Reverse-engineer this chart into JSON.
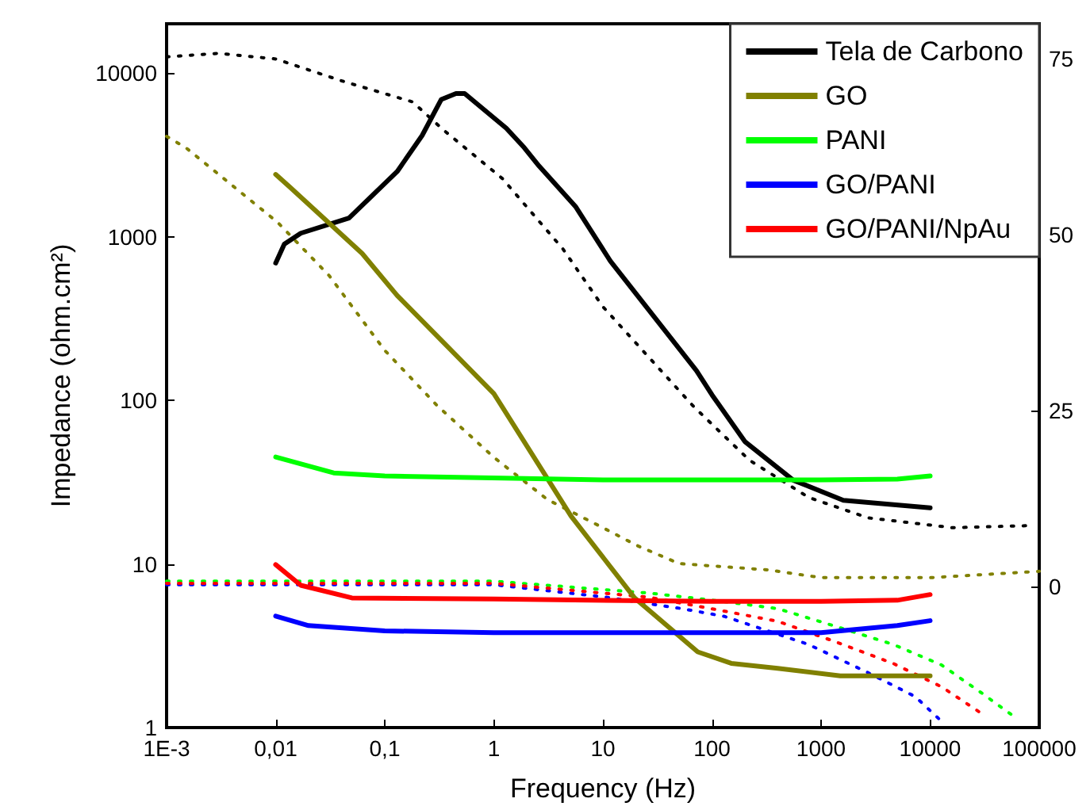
{
  "chart_data": {
    "type": "line",
    "xlabel": "Frequency (Hz)",
    "ylabel": "Impedance (ohm.cm²)",
    "log": "xy",
    "xlim": [
      0.001,
      100000
    ],
    "xticks": [
      {
        "value": 0.001,
        "label": "1E-3"
      },
      {
        "value": 0.01,
        "label": "0,01"
      },
      {
        "value": 0.1,
        "label": "0,1"
      },
      1,
      10,
      100,
      1000,
      10000,
      100000
    ],
    "ylim": [
      1,
      20000
    ],
    "yticks": [
      1,
      10,
      100,
      1000,
      10000
    ],
    "y2lim": [
      -20,
      80
    ],
    "y2ticks": [
      0,
      25,
      50,
      75
    ],
    "grid": false,
    "legend": "top right",
    "marker": "none",
    "line_style": "solid",
    "series": [
      {
        "name": "Tela de Carbono",
        "color": "#000000",
        "x": [
          0.01,
          0.012,
          0.017,
          0.047,
          0.13,
          0.22,
          0.33,
          0.45,
          0.54,
          1.3,
          1.9,
          2.6,
          5.6,
          11.7,
          72,
          100,
          200,
          556,
          1600,
          10000
        ],
        "values": [
          690,
          900,
          1050,
          1300,
          2500,
          4150,
          6900,
          7500,
          7500,
          4600,
          3500,
          2700,
          1530,
          710,
          152,
          108,
          56,
          32.5,
          24.5,
          22
        ]
      },
      {
        "name": "GO",
        "color": "#808000",
        "x": [
          0.01,
          0.0136,
          0.062,
          0.13,
          1,
          5.1,
          19.5,
          74,
          150,
          400,
          1500,
          10000
        ],
        "values": [
          2400,
          2000,
          790,
          437,
          110,
          19.6,
          6.2,
          2.9,
          2.47,
          2.3,
          2.07,
          2.07
        ]
      },
      {
        "name": "PANI",
        "color": "#00ff00",
        "x": [
          0.01,
          0.034,
          0.1,
          10,
          1000,
          5000,
          10000
        ],
        "values": [
          45,
          36,
          34.5,
          32.6,
          32.6,
          33,
          34.5
        ]
      },
      {
        "name": "GO/PANI",
        "color": "#0000ff",
        "x": [
          0.01,
          0.02,
          0.1,
          1,
          1000,
          5000,
          10000
        ],
        "values": [
          4.8,
          4.2,
          3.9,
          3.8,
          3.8,
          4.2,
          4.5
        ]
      },
      {
        "name": "GO/PANI/NpAu",
        "color": "#ff0000",
        "x": [
          0.01,
          0.017,
          0.05,
          1,
          100,
          1000,
          5000,
          10000
        ],
        "values": [
          9.9,
          7.4,
          6.2,
          6.1,
          5.9,
          5.9,
          6,
          6.5
        ]
      },
      {
        "color": "#000000",
        "axis": "y2",
        "line_style": "dotted",
        "x": [
          0.001,
          0.003,
          0.01,
          0.042,
          0.18,
          0.34,
          1.2,
          4.3,
          10,
          68,
          220,
          770,
          2700,
          16000,
          83000
        ],
        "values": [
          75.3,
          75.8,
          75,
          71.8,
          68.9,
          65,
          58,
          48,
          39.8,
          25.6,
          18,
          12.7,
          9.8,
          8.4,
          8.7
        ]
      },
      {
        "color": "#808000",
        "axis": "y2",
        "line_style": "dotted",
        "x": [
          0.001,
          0.0015,
          0.0104,
          0.031,
          0.1,
          0.3,
          1,
          3.1,
          10,
          21,
          50,
          330,
          1000,
          10000,
          100000
        ],
        "values": [
          64,
          62.4,
          51.8,
          44.2,
          33.6,
          25.8,
          18.4,
          12.4,
          8.4,
          5.8,
          3.3,
          2.4,
          1.3,
          1.3,
          2.2
        ]
      },
      {
        "color": "#00ff00",
        "axis": "y2",
        "line_style": "dotted",
        "x": [
          0.001,
          1,
          27,
          115,
          400,
          1350,
          4600,
          12700,
          31000,
          56000
        ],
        "values": [
          0.8,
          0.8,
          -0.9,
          -2,
          -3.1,
          -5.6,
          -8.2,
          -11.1,
          -15.3,
          -18.2
        ]
      },
      {
        "color": "#0000ff",
        "axis": "y2",
        "line_style": "dotted",
        "x": [
          0.001,
          1,
          11,
          53,
          130,
          770,
          2700,
          7300,
          12700
        ],
        "values": [
          0.3,
          0.3,
          -1.5,
          -3.1,
          -4.2,
          -8.2,
          -12.2,
          -15.6,
          -19.1
        ]
      },
      {
        "color": "#ff0000",
        "axis": "y2",
        "line_style": "dotted",
        "x": [
          0.001,
          1,
          27,
          115,
          400,
          1350,
          4600,
          12700,
          31000
        ],
        "values": [
          0.5,
          0.5,
          -1.5,
          -3.3,
          -4.9,
          -7.8,
          -10.9,
          -14.2,
          -18.2
        ]
      }
    ]
  }
}
